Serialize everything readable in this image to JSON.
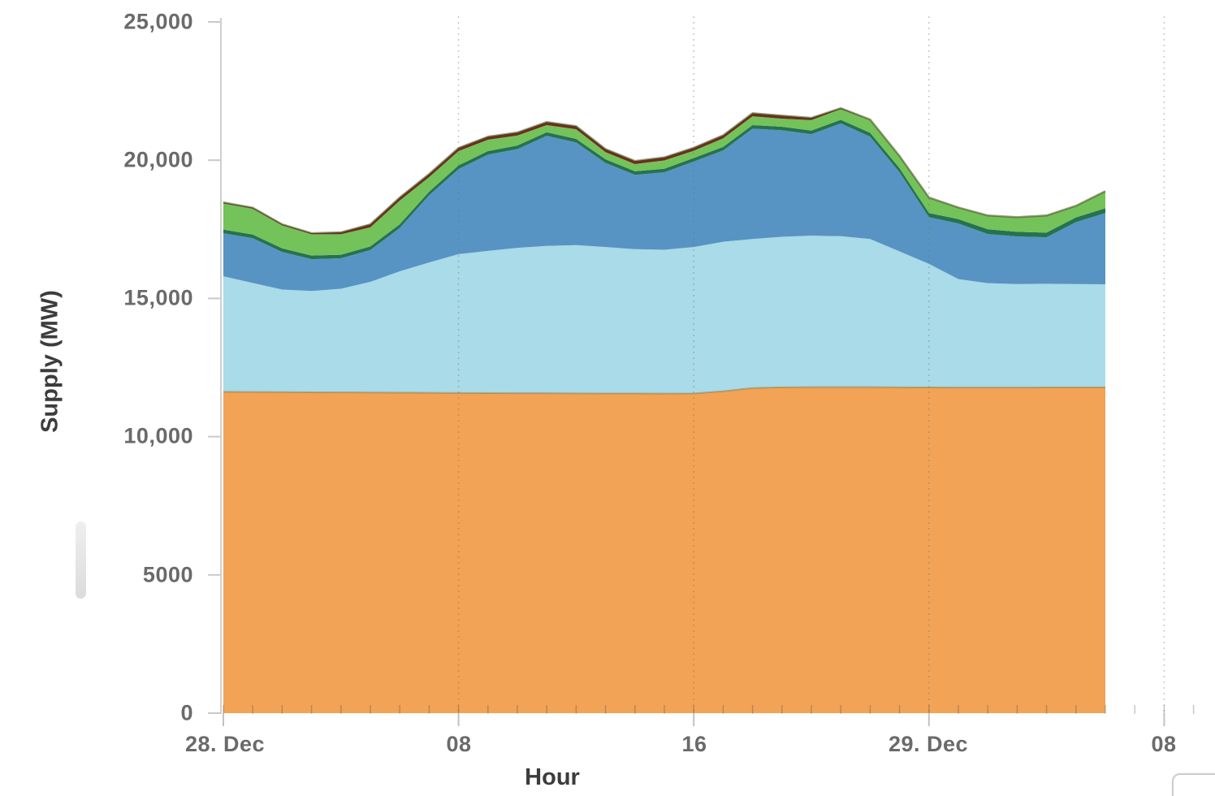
{
  "figure": {
    "y_axis": {
      "title": "Supply (MW)",
      "tick_labels": [
        "25,000",
        "20,000",
        "15,000",
        "10,000",
        "5000",
        "0"
      ],
      "tick_values": [
        25000,
        20000,
        15000,
        10000,
        5000,
        0
      ]
    },
    "x_axis": {
      "title": "Hour",
      "tick_labels": [
        "28. Dec",
        "08",
        "16",
        "29. Dec",
        "08"
      ],
      "tick_hours": [
        0,
        8,
        16,
        24,
        32
      ]
    }
  },
  "chart_data": {
    "type": "area",
    "stacking": "normal",
    "title": "",
    "xlabel": "Hour",
    "ylabel": "Supply (MW)",
    "ylim": [
      0,
      25000
    ],
    "xlim_hours": [
      0,
      33
    ],
    "data_end_hour": 30,
    "x_start_label": "28. Dec",
    "grid": "vertical-dotted-at-major-ticks",
    "legend": "none",
    "x_hours": [
      0,
      1,
      2,
      3,
      4,
      5,
      6,
      7,
      8,
      9,
      10,
      11,
      12,
      13,
      14,
      15,
      16,
      17,
      18,
      19,
      20,
      21,
      22,
      23,
      24,
      25,
      26,
      27,
      28,
      29,
      30
    ],
    "series": [
      {
        "id": "orange",
        "color": "#F2A355",
        "values": [
          11620,
          11615,
          11610,
          11605,
          11600,
          11595,
          11590,
          11585,
          11580,
          11575,
          11570,
          11570,
          11565,
          11560,
          11560,
          11555,
          11560,
          11640,
          11760,
          11785,
          11790,
          11790,
          11790,
          11785,
          11780,
          11775,
          11775,
          11775,
          11780,
          11780,
          11780
        ]
      },
      {
        "id": "light-blue",
        "color": "#A9DBE8",
        "values": [
          4180,
          3945,
          3710,
          3665,
          3750,
          4005,
          4390,
          4715,
          5020,
          5145,
          5260,
          5330,
          5365,
          5300,
          5220,
          5205,
          5300,
          5410,
          5390,
          5445,
          5480,
          5460,
          5360,
          4915,
          4470,
          3925,
          3775,
          3745,
          3750,
          3740,
          3730
        ]
      },
      {
        "id": "dark-blue",
        "color": "#5794C4",
        "values": [
          1560,
          1620,
          1360,
          1150,
          1100,
          1150,
          1570,
          2430,
          3080,
          3480,
          3570,
          3980,
          3710,
          3040,
          2690,
          2800,
          3090,
          3300,
          3990,
          3850,
          3670,
          4080,
          3700,
          2860,
          1690,
          2010,
          1780,
          1720,
          1680,
          2240,
          2580
        ]
      },
      {
        "id": "teal-edge",
        "color": "#26724F",
        "values": [
          130,
          130,
          130,
          130,
          130,
          130,
          130,
          130,
          130,
          130,
          130,
          130,
          130,
          130,
          130,
          130,
          130,
          130,
          130,
          130,
          130,
          130,
          140,
          150,
          150,
          160,
          170,
          170,
          170,
          170,
          170
        ]
      },
      {
        "id": "green",
        "color": "#74C25A",
        "values": [
          950,
          940,
          840,
          770,
          740,
          690,
          860,
          530,
          520,
          410,
          360,
          260,
          350,
          260,
          260,
          300,
          260,
          310,
          320,
          290,
          380,
          390,
          480,
          440,
          560,
          420,
          500,
          530,
          620,
          420,
          620
        ]
      },
      {
        "id": "dark-red",
        "color": "#6F2D1C",
        "values": [
          30,
          30,
          30,
          40,
          70,
          110,
          110,
          110,
          110,
          110,
          110,
          110,
          110,
          110,
          110,
          110,
          110,
          110,
          110,
          110,
          80,
          30,
          0,
          0,
          0,
          0,
          0,
          0,
          0,
          0,
          0
        ]
      }
    ],
    "outline_colors": {
      "total_top_stroke": "rgba(70,75,30,0.55)",
      "orange_top_stroke": "rgba(150,115,55,0.5)"
    },
    "axis_colors": {
      "axis_line": "#cfcfcf",
      "tick": "#c9c9c9",
      "major_tick_below": "#c2c2c2",
      "gridline": "rgba(110,110,110,0.38)",
      "minor_tick": "rgba(70,70,70,0.3)"
    }
  },
  "decorations": {
    "scrollbar_thumb": true,
    "corner_panel": true
  }
}
